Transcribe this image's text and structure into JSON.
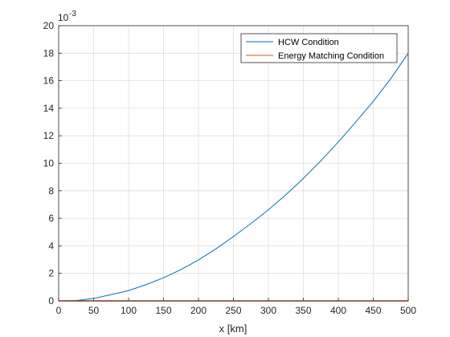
{
  "chart_data": {
    "type": "line",
    "xlabel": "x [km]",
    "ylabel": "",
    "y_exponent_label": "10",
    "y_exponent_power": "-3",
    "xlim": [
      0,
      500
    ],
    "ylim": [
      0,
      20
    ],
    "x_ticks": [
      0,
      50,
      100,
      150,
      200,
      250,
      300,
      350,
      400,
      450,
      500
    ],
    "y_ticks": [
      0,
      2,
      4,
      6,
      8,
      10,
      12,
      14,
      16,
      18,
      20
    ],
    "x_tick_labels": [
      "0",
      "50",
      "100",
      "150",
      "200",
      "250",
      "300",
      "350",
      "400",
      "450",
      "500"
    ],
    "y_tick_labels": [
      "0",
      "2",
      "4",
      "6",
      "8",
      "10",
      "12",
      "14",
      "16",
      "18",
      "20"
    ],
    "grid": true,
    "legend_position": "top-right",
    "series": [
      {
        "name": "HCW Condition",
        "color": "#0072BD",
        "x": [
          0,
          25,
          50,
          75,
          100,
          125,
          150,
          175,
          200,
          225,
          250,
          275,
          300,
          325,
          350,
          375,
          400,
          425,
          450,
          475,
          500
        ],
        "y": [
          0,
          0.02,
          0.18,
          0.45,
          0.75,
          1.18,
          1.68,
          2.28,
          2.98,
          3.78,
          4.68,
          5.62,
          6.62,
          7.71,
          8.9,
          10.18,
          11.55,
          13.0,
          14.5,
          16.15,
          18.0
        ]
      },
      {
        "name": "Energy Matching Condition",
        "color": "#D95319",
        "x": [
          0,
          500
        ],
        "y": [
          0,
          0
        ]
      }
    ]
  }
}
